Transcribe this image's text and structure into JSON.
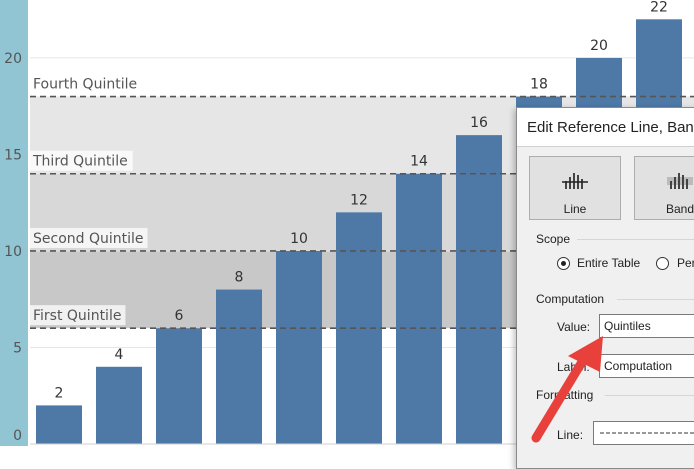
{
  "chart_data": {
    "type": "bar",
    "categories": [
      "",
      "",
      "",
      "",
      "",
      "",
      "",
      "",
      "",
      "",
      ""
    ],
    "values": [
      2,
      4,
      6,
      8,
      10,
      12,
      14,
      16,
      18,
      20,
      22
    ],
    "y_ticks": [
      0,
      5,
      10,
      15,
      20
    ],
    "ylim": [
      0,
      23
    ],
    "grid": true,
    "bar_color": "#4e79a7",
    "axis_band_color": "#92c5d4",
    "reference_lines": [
      {
        "label": "First Quintile",
        "value": 6
      },
      {
        "label": "Second Quintile",
        "value": 10
      },
      {
        "label": "Third Quintile",
        "value": 14
      },
      {
        "label": "Fourth Quintile",
        "value": 18
      }
    ],
    "band_colors": [
      "#c8c8c8",
      "#d8d8d8",
      "#e6e6e6",
      "#f2f2f2"
    ]
  },
  "dialog": {
    "title": "Edit Reference Line, Band,",
    "type_buttons": [
      {
        "label": "Line",
        "icon": "reference-line-icon",
        "selected": true
      },
      {
        "label": "Band",
        "icon": "reference-band-icon",
        "selected": false
      }
    ],
    "scope": {
      "title": "Scope",
      "options": [
        {
          "label": "Entire Table",
          "selected": true
        },
        {
          "label": "Per",
          "selected": false
        }
      ]
    },
    "computation": {
      "title": "Computation",
      "value_label": "Value:",
      "value": "Quintiles",
      "label_label": "Label:",
      "label_value": "Computation"
    },
    "formatting": {
      "title": "Formatting",
      "line_label": "Line:"
    }
  },
  "annotation": {
    "arrow_color": "#e8413b"
  }
}
